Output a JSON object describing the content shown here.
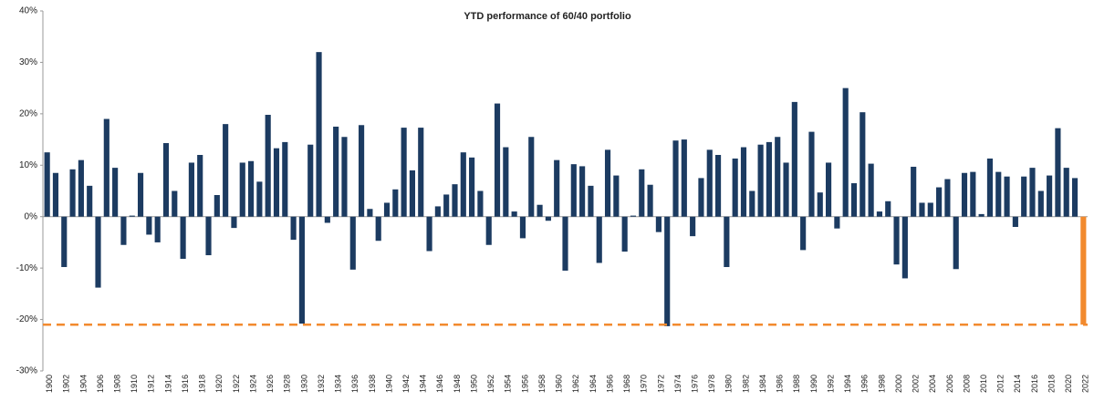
{
  "chart_data": {
    "type": "bar",
    "title": "YTD performance of 60/40 portfolio",
    "categories": [
      "1900",
      null,
      "1902",
      null,
      "1904",
      null,
      "1906",
      null,
      "1908",
      null,
      "1910",
      null,
      "1912",
      null,
      "1914",
      null,
      "1916",
      null,
      "1918",
      null,
      "1920",
      null,
      "1922",
      null,
      "1924",
      null,
      "1926",
      null,
      "1928",
      null,
      "1930",
      null,
      "1932",
      null,
      "1934",
      null,
      "1936",
      null,
      "1938",
      null,
      "1940",
      null,
      "1942",
      null,
      "1944",
      null,
      "1946",
      null,
      "1948",
      null,
      "1950",
      null,
      "1952",
      null,
      "1954",
      null,
      "1956",
      null,
      "1958",
      null,
      "1960",
      null,
      "1962",
      null,
      "1964",
      null,
      "1966",
      null,
      "1968",
      null,
      "1970",
      null,
      "1972",
      null,
      "1974",
      null,
      "1976",
      null,
      "1978",
      null,
      "1980",
      null,
      "1982",
      null,
      "1984",
      null,
      "1986",
      null,
      "1988",
      null,
      "1990",
      null,
      "1992",
      null,
      "1994",
      null,
      "1996",
      null,
      "1998",
      null,
      "2000",
      null,
      "2002",
      null,
      "2004",
      null,
      "2006",
      null,
      "2008",
      null,
      "2010",
      null,
      "2012",
      null,
      "2014",
      null,
      "2016",
      null,
      "2018",
      null,
      "2020",
      null,
      "2022"
    ],
    "values": [
      12.5,
      8.5,
      -9.8,
      9.2,
      11,
      6,
      -13.8,
      19,
      9.5,
      -5.5,
      0.2,
      8.5,
      -3.5,
      -5,
      14.3,
      5,
      -8.2,
      10.5,
      12,
      -7.5,
      4.2,
      18,
      -2.2,
      10.5,
      10.8,
      6.8,
      19.8,
      13.3,
      14.5,
      -4.5,
      -20.8,
      14,
      32,
      -1.2,
      17.5,
      15.5,
      -10.3,
      17.8,
      1.5,
      -4.7,
      2.7,
      5.3,
      17.3,
      9,
      17.3,
      -6.7,
      2,
      4.3,
      6.3,
      12.5,
      11.5,
      5,
      -5.5,
      22,
      13.5,
      1,
      -4.2,
      15.5,
      2.3,
      -0.8,
      11,
      -10.5,
      10.2,
      9.8,
      6,
      -9,
      13,
      8,
      -6.8,
      0.2,
      9.2,
      6.2,
      -3,
      -21.3,
      14.8,
      15,
      -3.8,
      7.5,
      13,
      12,
      -9.8,
      11.3,
      13.5,
      5,
      14,
      14.5,
      15.5,
      10.5,
      22.3,
      -6.5,
      16.5,
      4.7,
      10.5,
      -2.3,
      25,
      6.5,
      20.3,
      10.3,
      1,
      3,
      -9.3,
      -12,
      9.7,
      2.7,
      2.7,
      5.7,
      7.3,
      -10.2,
      8.5,
      8.7,
      0.5,
      11.3,
      8.7,
      7.8,
      -2,
      7.8,
      9.5,
      5,
      8,
      17.2,
      9.5,
      7.5,
      -21
    ],
    "color": "#1c3b61",
    "highlight": {
      "index": 122,
      "color": "#f28a2e"
    },
    "reference_line": -21,
    "ylim": [
      -30,
      40
    ],
    "yticks": [
      {
        "value": -30,
        "label": "-30%"
      },
      {
        "value": -20,
        "label": "-20%"
      },
      {
        "value": -10,
        "label": "-10%"
      },
      {
        "value": 0,
        "label": "0%"
      },
      {
        "value": 10,
        "label": "10%"
      },
      {
        "value": 20,
        "label": "20%"
      },
      {
        "value": 30,
        "label": "30%"
      },
      {
        "value": 40,
        "label": "40%"
      }
    ],
    "grid": false
  }
}
